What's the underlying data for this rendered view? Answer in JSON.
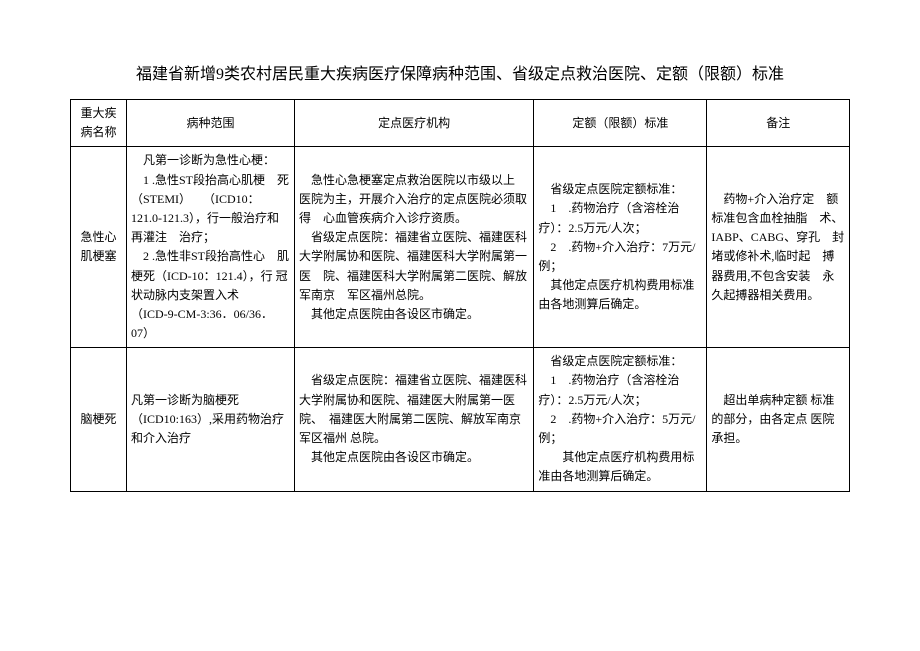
{
  "title": "福建省新增9类农村居民重大疾病医疗保障病种范围、省级定点救治医院、定额（限额）标准",
  "headers": {
    "name": "重大疾病名称",
    "scope": "病种范围",
    "hospital": "定点医疗机构",
    "standard": "定额（限额）标准",
    "remark": "备注"
  },
  "rows": [
    {
      "name": "急性心肌梗塞",
      "scope": "　凡第一诊断为急性心梗：\n　1 .急性ST段抬高心肌梗　死（STEMI）　　（ICD10：　121.0-121.3），行一般治疗和再灌注　治疗；\n　2 .急性非ST段抬高性心　肌梗死（ICD-10：121.4），行 冠 状动脉内支架置入术　　（ICD-9-CM-3:36．06/36．07）",
      "hospital": "　急性心急梗塞定点救治医院以市级以上　医院为主，开展介入治疗的定点医院必须取得　心血管疾病介入诊疗资质。\n　省级定点医院：福建省立医院、福建医科　大学附属协和医院、福建医科大学附属第一医　院、福建医科大学附属第二医院、解放军南京　军区福州总院。\n　其他定点医院由各设区市确定。",
      "standard": "　省级定点医院定额标准：\n　1　.药物治疗（含溶栓治疗）：2.5万元/人次；\n　2　.药物+介入治疗：7万元/例；\n　其他定点医疗机构费用标准由各地测算后确定。",
      "remark": "　药物+介入治疗定　额标准包含血栓抽脂　术、IABP、CABG、穿孔　封堵或修补术,临时起　搏器费用,不包含安装　永久起搏器相关费用。"
    },
    {
      "name": "脑梗死",
      "scope": "凡第一诊断为脑梗死　（ICD10:163）,采用药物治疗 和介入治疗",
      "hospital": "　省级定点医院：福建省立医院、福建医科　大学附属协和医院、福建医大附属第一医院、　福建医大附属第二医院、解放军南京军区福州 总院。\n　其他定点医院由各设区市确定。",
      "standard": "　省级定点医院定额标准：\n　1　.药物治疗（含溶栓治疗）：2.5万元/人次；\n　2　.药物+介入治疗：5万元/例；\n　　其他定点医疗机构费用标准由各地测算后确定。",
      "remark": "　超出单病种定额 标准的部分，由各定点 医院承担。"
    }
  ]
}
